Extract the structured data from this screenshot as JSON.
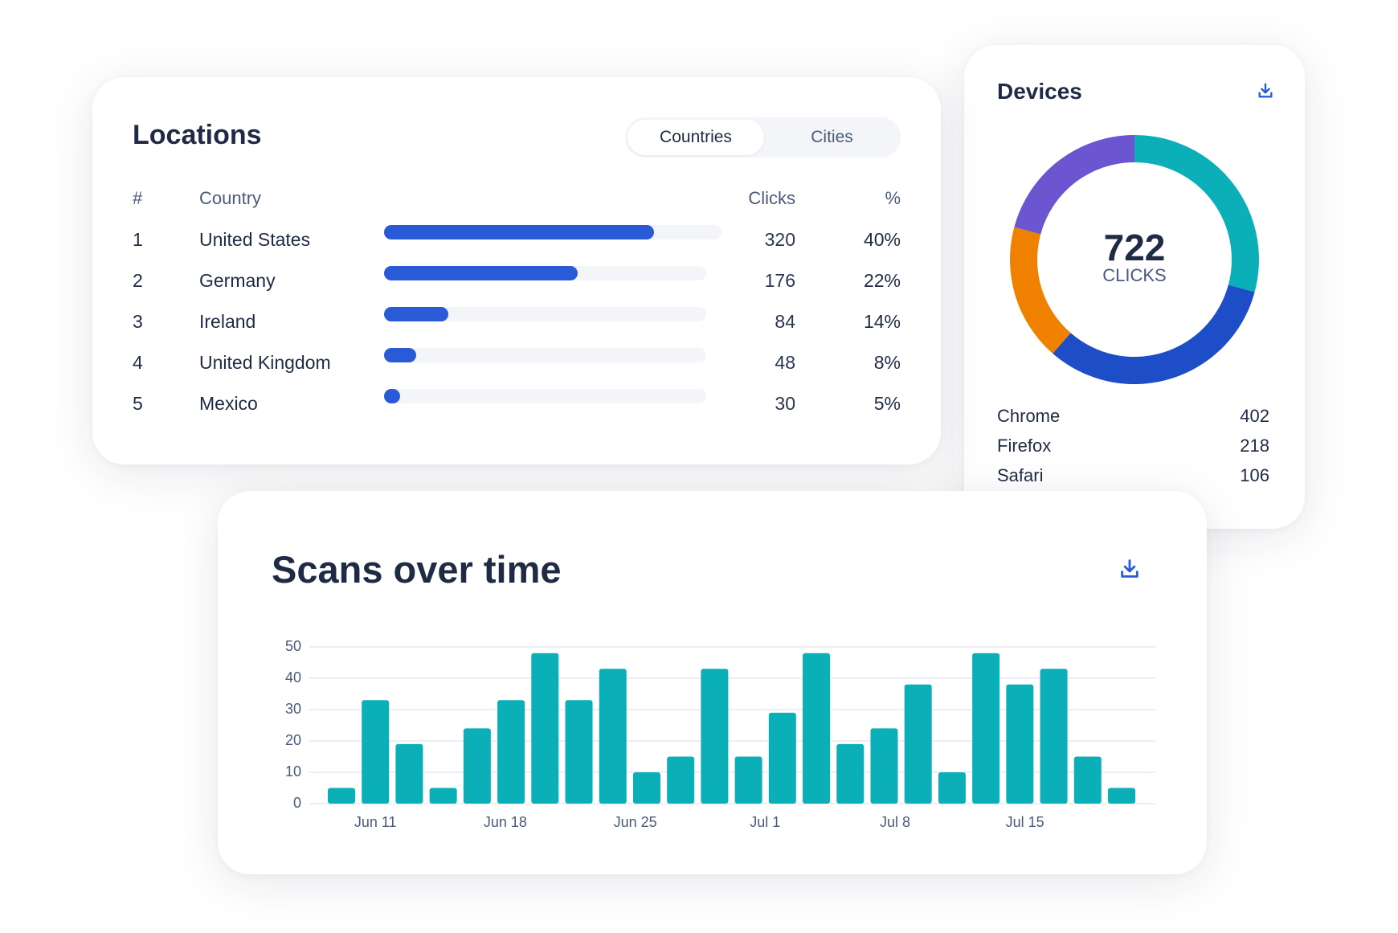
{
  "locations": {
    "title": "Locations",
    "tabs": [
      {
        "label": "Countries",
        "active": true
      },
      {
        "label": "Cities",
        "active": false
      }
    ],
    "columns": {
      "rank": "#",
      "country": "Country",
      "clicks": "Clicks",
      "percent": "%"
    },
    "rows": [
      {
        "rank": "1",
        "country": "United States",
        "clicks": "320",
        "percent": "40%",
        "bar_fill": 0.8
      },
      {
        "rank": "2",
        "country": "Germany",
        "clicks": "176",
        "percent": "22%",
        "bar_fill": 0.6
      },
      {
        "rank": "3",
        "country": "Ireland",
        "clicks": "84",
        "percent": "14%",
        "bar_fill": 0.2
      },
      {
        "rank": "4",
        "country": "United Kingdom",
        "clicks": "48",
        "percent": "8%",
        "bar_fill": 0.1
      },
      {
        "rank": "5",
        "country": "Mexico",
        "clicks": "30",
        "percent": "5%",
        "bar_fill": 0.05
      }
    ],
    "bar_color": "#2a5bd7"
  },
  "devices": {
    "title": "Devices",
    "download_icon": "download-icon",
    "total": "722",
    "total_label": "CLICKS",
    "segments": [
      {
        "color": "#0bafb8",
        "fraction": 0.292
      },
      {
        "color": "#1e4dc8",
        "fraction": 0.322
      },
      {
        "color": "#f08000",
        "fraction": 0.178
      },
      {
        "color": "#6b55d0",
        "fraction": 0.208
      }
    ],
    "items": [
      {
        "label": "Chrome",
        "value": "402"
      },
      {
        "label": "Firefox",
        "value": "218"
      },
      {
        "label": "Safari",
        "value": "106"
      }
    ]
  },
  "scans": {
    "title": "Scans over time",
    "download_icon": "download-icon"
  },
  "chart_data": {
    "type": "bar",
    "title": "Scans over time",
    "values": [
      5,
      33,
      19,
      5,
      24,
      33,
      48,
      33,
      43,
      10,
      15,
      43,
      15,
      29,
      48,
      19,
      24,
      38,
      10,
      48,
      38,
      43,
      15,
      5
    ],
    "x_tick_labels": [
      "Jun 11",
      "Jun 18",
      "Jun 25",
      "Jul 1",
      "Jul 8",
      "Jul 15"
    ],
    "y_ticks": [
      0,
      10,
      20,
      30,
      40,
      50
    ],
    "ylim": [
      0,
      50
    ],
    "grid": true,
    "bar_color": "#0bafb8"
  }
}
